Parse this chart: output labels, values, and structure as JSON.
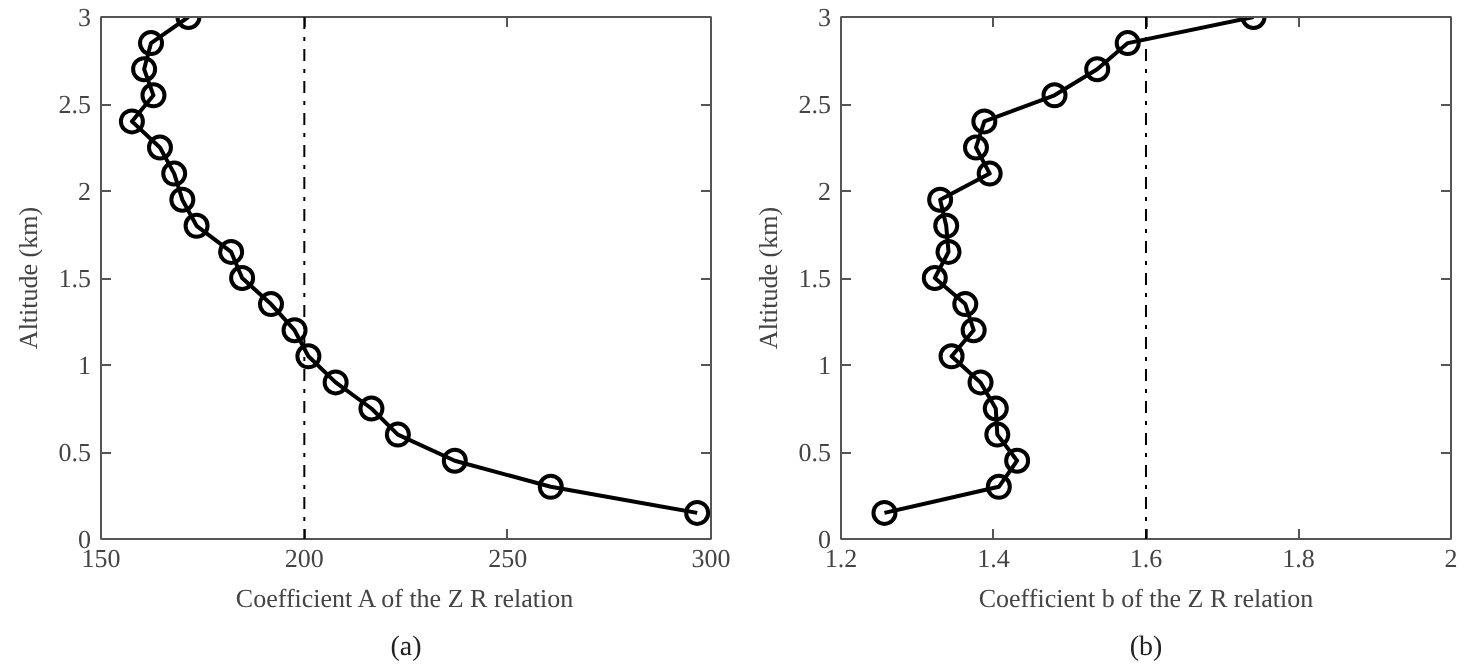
{
  "chart_data": [
    {
      "type": "line",
      "xlabel": "Coefficient A of the Z R relation",
      "ylabel": "Altitude (km)",
      "annotations": [
        "(a)"
      ],
      "marker": "circle",
      "line_style": "solid",
      "series": [
        {
          "color": "#000000",
          "x": [
            296.6,
            260.6,
            237,
            223,
            216.5,
            207.7,
            201,
            197.6,
            191.8,
            184.7,
            182,
            173.5,
            170,
            168,
            164.5,
            157.6,
            162.9,
            160.6,
            162.3,
            171.5
          ],
          "values": [
            0.15,
            0.3,
            0.45,
            0.6,
            0.75,
            0.9,
            1.05,
            1.2,
            1.35,
            1.5,
            1.65,
            1.8,
            1.95,
            2.1,
            2.25,
            2.4,
            2.55,
            2.7,
            2.85,
            3.0
          ]
        }
      ],
      "xlim": [
        150,
        300
      ],
      "xticks": [
        150,
        200,
        250,
        300
      ],
      "ylim": [
        0,
        3
      ],
      "yticks": [
        0,
        0.5,
        1,
        1.5,
        2,
        2.5,
        3
      ],
      "ref_lines": [
        {
          "axis": "x",
          "value": 200,
          "color": "#000000",
          "line_style": "dashdot"
        }
      ]
    },
    {
      "type": "line",
      "xlabel": "Coefficient b of the Z R relation",
      "ylabel": "Altitude (km)",
      "annotations": [
        "(b)"
      ],
      "marker": "circle",
      "line_style": "solid",
      "series": [
        {
          "color": "#000000",
          "x": [
            1.257,
            1.407,
            1.431,
            1.405,
            1.403,
            1.383,
            1.345,
            1.374,
            1.363,
            1.323,
            1.341,
            1.338,
            1.33,
            1.395,
            1.377,
            1.388,
            1.48,
            1.536,
            1.576,
            1.741
          ],
          "values": [
            0.15,
            0.3,
            0.45,
            0.6,
            0.75,
            0.9,
            1.05,
            1.2,
            1.35,
            1.5,
            1.65,
            1.8,
            1.95,
            2.1,
            2.25,
            2.4,
            2.55,
            2.7,
            2.85,
            3.0
          ]
        }
      ],
      "xlim": [
        1.2,
        2
      ],
      "xticks": [
        1.2,
        1.4,
        1.6,
        1.8,
        2
      ],
      "ylim": [
        0,
        3
      ],
      "yticks": [
        0,
        0.5,
        1,
        1.5,
        2,
        2.5,
        3
      ],
      "ref_lines": [
        {
          "axis": "x",
          "value": 1.6,
          "color": "#000000",
          "line_style": "dashdot"
        }
      ]
    }
  ]
}
